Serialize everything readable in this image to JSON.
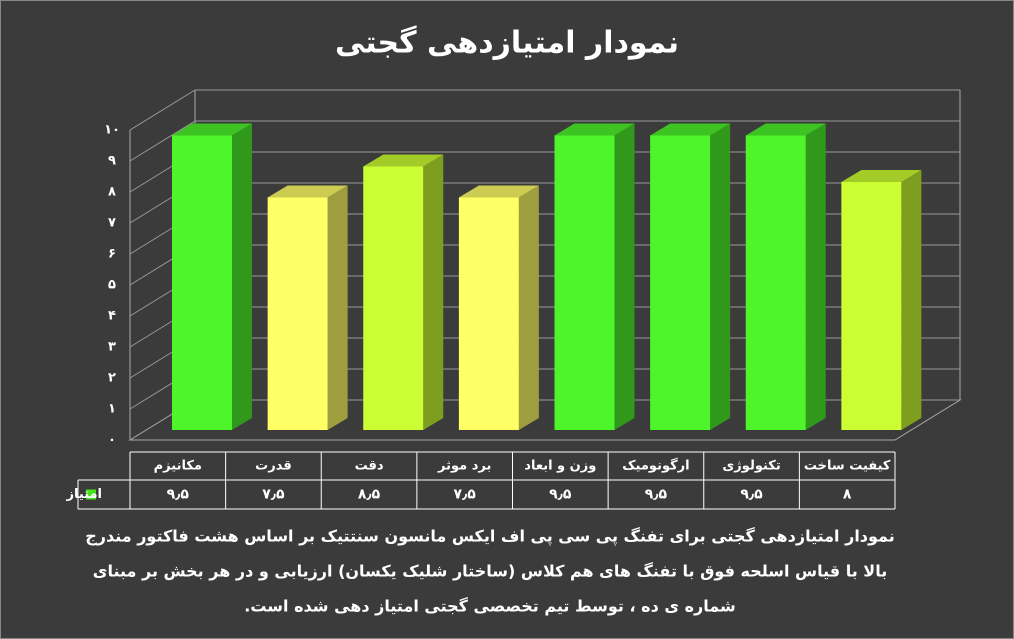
{
  "chart_data": {
    "type": "bar3d",
    "title": "نمودار امتیازدهی گجتی",
    "categories": [
      "مکانیزم",
      "قدرت",
      "دقت",
      "برد موثر",
      "وزن و ابعاد",
      "ارگونومیک",
      "تکنولوژی",
      "کیفیت ساخت"
    ],
    "series": [
      {
        "name": "امتیاز",
        "color": "#44e41c",
        "colors": [
          "#4df52a",
          "#ffff66",
          "#ccff33",
          "#ffff66",
          "#4df52a",
          "#4df52a",
          "#4df52a",
          "#ccff33"
        ],
        "values": [
          9.5,
          7.5,
          8.5,
          7.5,
          9.5,
          9.5,
          9.5,
          8
        ],
        "value_labels": [
          "۹٫۵",
          "۷٫۵",
          "۸٫۵",
          "۷٫۵",
          "۹٫۵",
          "۹٫۵",
          "۹٫۵",
          "۸"
        ]
      }
    ],
    "ylim": [
      0,
      10
    ],
    "yticks": [
      {
        "value": 0,
        "label": "۰"
      },
      {
        "value": 1,
        "label": "۱"
      },
      {
        "value": 2,
        "label": "۲"
      },
      {
        "value": 3,
        "label": "۳"
      },
      {
        "value": 4,
        "label": "۴"
      },
      {
        "value": 5,
        "label": "۵"
      },
      {
        "value": 6,
        "label": "۶"
      },
      {
        "value": 7,
        "label": "۷"
      },
      {
        "value": 8,
        "label": "۸"
      },
      {
        "value": 9,
        "label": "۹"
      },
      {
        "value": 10,
        "label": "۱۰"
      }
    ],
    "grid": true,
    "caption": [
      "نمودار امتیازدهی گجتی برای تفنگ پی سی پی اف ایکس مانسون سنتتیک  بر اساس هشت فاکتور مندرج",
      "بالا با قیاس اسلحه فوق با تفنگ های هم کلاس (ساختار شلیک یکسان) ارزیابی و در هر بخش بر مبنای",
      "شماره ی ده ، توسط تیم تخصصی گجتی امتیاز دهی شده است."
    ]
  }
}
